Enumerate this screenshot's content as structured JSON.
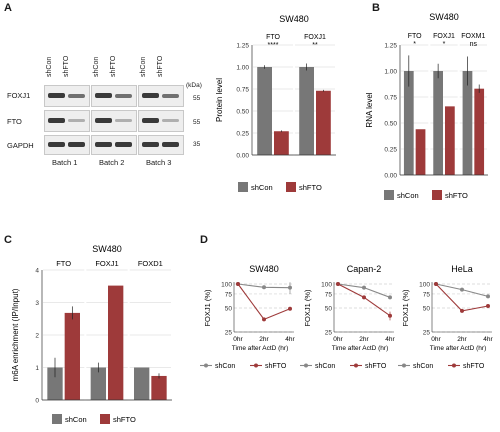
{
  "colors": {
    "shCon": "#777777",
    "shFTO": "#9e3a3a",
    "grid": "#d4d4d4",
    "axis": "#333333"
  },
  "panelA": {
    "letter": "A",
    "blot": {
      "lane_labels": [
        "shCon",
        "shFTO",
        "shCon",
        "shFTO",
        "shCon",
        "shFTO"
      ],
      "rows": [
        "FOXJ1",
        "FTO",
        "GAPDH"
      ],
      "kda_title": "(kDa)",
      "kda_marks": [
        "55",
        "55",
        "35"
      ],
      "batches": [
        "Batch 1",
        "Batch 2",
        "Batch 3"
      ]
    }
  },
  "panelB": {
    "letter": "B"
  },
  "panelC": {
    "letter": "C"
  },
  "panelD": {
    "letter": "D"
  },
  "chart_data": [
    {
      "id": "A-bar",
      "type": "bar",
      "title": "SW480",
      "ylabel": "Protein level",
      "categories": [
        "FTO",
        "FOXJ1"
      ],
      "series": [
        {
          "name": "shCon",
          "values": [
            1.0,
            1.0
          ],
          "err": [
            0.02,
            0.04
          ]
        },
        {
          "name": "shFTO",
          "values": [
            0.27,
            0.73
          ],
          "err": [
            0.01,
            0.01
          ]
        }
      ],
      "significance": [
        "****",
        "**"
      ],
      "ylim": [
        0,
        1.25
      ],
      "yticks": [
        "0.00",
        "0.25",
        "0.50",
        "0.75",
        "1.00",
        "1.25"
      ],
      "legend": "bottom"
    },
    {
      "id": "B-bar",
      "type": "bar",
      "title": "SW480",
      "ylabel": "RNA level",
      "categories": [
        "FTO",
        "FOXJ1",
        "FOXM1"
      ],
      "series": [
        {
          "name": "shCon",
          "values": [
            1.0,
            1.0,
            1.0
          ],
          "err": [
            0.15,
            0.07,
            0.14
          ]
        },
        {
          "name": "shFTO",
          "values": [
            0.44,
            0.66,
            0.83
          ],
          "err": [
            0.0,
            0.0,
            0.04
          ]
        }
      ],
      "significance": [
        "*",
        "*",
        "ns"
      ],
      "ylim": [
        0,
        1.25
      ],
      "yticks": [
        "0.00",
        "0.25",
        "0.50",
        "0.75",
        "1.00",
        "1.25"
      ],
      "legend": "bottom"
    },
    {
      "id": "C-bar",
      "type": "bar",
      "title": "SW480",
      "ylabel": "m6A enrichment (IP/Input)",
      "categories": [
        "FTO",
        "FOXJ1",
        "FOXD1"
      ],
      "series": [
        {
          "name": "shCon",
          "values": [
            1.0,
            1.0,
            1.0
          ],
          "err": [
            0.3,
            0.15,
            0.0
          ]
        },
        {
          "name": "shFTO",
          "values": [
            2.68,
            3.52,
            0.74
          ],
          "err": [
            0.2,
            0.0,
            0.08
          ]
        }
      ],
      "ylim": [
        0,
        4
      ],
      "yticks": [
        "0",
        "1",
        "2",
        "3",
        "4"
      ],
      "legend": "bottom"
    },
    {
      "id": "D-SW480",
      "type": "line",
      "title": "SW480",
      "xlabel": "Time after ActD (hr)",
      "ylabel": "FOXJ1 (%)",
      "x": [
        "0hr",
        "2hr",
        "4hr"
      ],
      "series": [
        {
          "name": "shCon",
          "values": [
            100,
            91,
            90
          ],
          "err": [
            0,
            4,
            15
          ]
        },
        {
          "name": "shFTO",
          "values": [
            100,
            36,
            49
          ],
          "err": [
            0,
            0,
            0
          ]
        }
      ],
      "ylim": [
        25,
        100
      ],
      "yticks": [
        "25",
        "50",
        "75",
        "100"
      ],
      "log_scale_y": true,
      "legend": "bottom"
    },
    {
      "id": "D-Capan2",
      "type": "line",
      "title": "Capan-2",
      "xlabel": "Time after ActD (hr)",
      "ylabel": "FOXJ1 (%)",
      "x": [
        "0hr",
        "2hr",
        "4hr"
      ],
      "series": [
        {
          "name": "shCon",
          "values": [
            100,
            90,
            68
          ],
          "err": [
            0,
            3,
            3
          ]
        },
        {
          "name": "shFTO",
          "values": [
            100,
            68,
            40
          ],
          "err": [
            0,
            0,
            5
          ]
        }
      ],
      "ylim": [
        25,
        100
      ],
      "yticks": [
        "25",
        "50",
        "75",
        "100"
      ],
      "log_scale_y": true,
      "legend": "bottom"
    },
    {
      "id": "D-HeLa",
      "type": "line",
      "title": "HeLa",
      "xlabel": "Time after ActD (hr)",
      "ylabel": "FOXJ1 (%)",
      "x": [
        "0hr",
        "2hr",
        "4hr"
      ],
      "series": [
        {
          "name": "shCon",
          "values": [
            100,
            85,
            70
          ],
          "err": [
            4,
            3,
            2
          ]
        },
        {
          "name": "shFTO",
          "values": [
            100,
            46,
            53
          ],
          "err": [
            0,
            0,
            0
          ]
        }
      ],
      "ylim": [
        25,
        100
      ],
      "yticks": [
        "25",
        "50",
        "75",
        "100"
      ],
      "log_scale_y": true,
      "legend": "bottom"
    }
  ]
}
